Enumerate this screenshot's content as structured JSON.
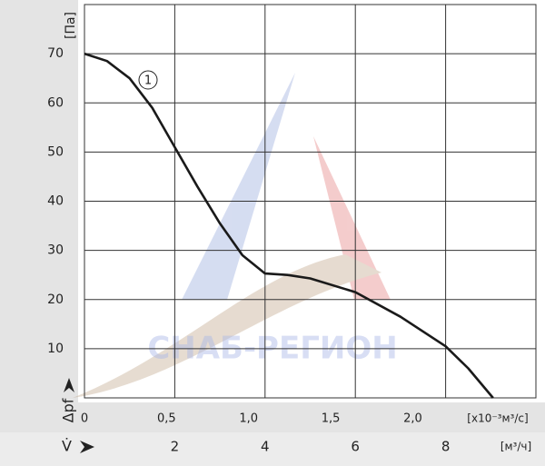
{
  "chart_data": {
    "type": "line",
    "y_label": "[Па]",
    "y_symbol": "Δpf",
    "x_symbol": "V̇",
    "x_label": "[м³/ч]",
    "x2_label": "[x10⁻³м³/с]",
    "watermark": "СНАБ-РЕГИОН",
    "xlim": [
      0,
      10
    ],
    "xticks": [
      2,
      4,
      6,
      8
    ],
    "x2lim": [
      0,
      2.75
    ],
    "x2ticks": [
      0,
      {
        "value": 0.5,
        "label": "0,5"
      },
      {
        "value": 1,
        "label": "1,0"
      },
      {
        "value": 1.5,
        "label": "1,5"
      },
      {
        "value": 2,
        "label": "2,0"
      }
    ],
    "ylim": [
      0,
      80
    ],
    "yticks": [
      10,
      20,
      30,
      40,
      50,
      60,
      70
    ],
    "grid": true,
    "x": [
      0,
      0.5,
      1,
      1.5,
      2,
      2.5,
      3,
      3.5,
      4,
      4.5,
      5,
      6,
      7,
      8,
      8.5,
      9.05
    ],
    "series": [
      {
        "name": "1",
        "color": "#1a1a1a",
        "values": [
          70,
          68.5,
          65,
          59,
          51,
          43,
          35.5,
          29,
          25.3,
          25,
          24.3,
          21.5,
          16.5,
          10.5,
          6,
          0
        ]
      }
    ]
  }
}
